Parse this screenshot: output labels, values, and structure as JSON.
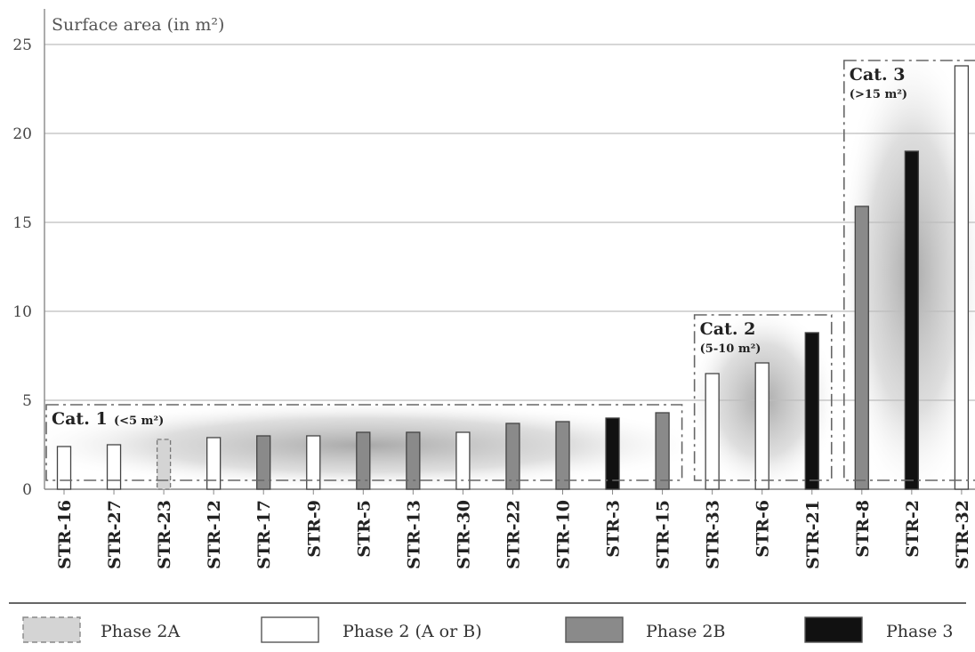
{
  "chart_data": {
    "type": "bar",
    "ylabel": "Surface area (in m²)",
    "ylim": [
      0,
      25
    ],
    "yticks": [
      0,
      5,
      10,
      15,
      20,
      25
    ],
    "grid": true,
    "categories": [
      "STR-16",
      "STR-27",
      "STR-23",
      "STR-12",
      "STR-17",
      "STR-9",
      "STR-5",
      "STR-13",
      "STR-30",
      "STR-22",
      "STR-10",
      "STR-3",
      "STR-15",
      "STR-33",
      "STR-6",
      "STR-21",
      "STR-8",
      "STR-2",
      "STR-32"
    ],
    "values": [
      2.4,
      2.5,
      2.8,
      2.9,
      3.0,
      3.0,
      3.2,
      3.2,
      3.2,
      3.7,
      3.8,
      4.0,
      4.3,
      6.5,
      7.1,
      8.8,
      15.9,
      19.0,
      23.8
    ],
    "phases": [
      "Phase 2 (A or B)",
      "Phase 2 (A or B)",
      "Phase 2A",
      "Phase 2 (A or B)",
      "Phase 2B",
      "Phase 2 (A or B)",
      "Phase 2B",
      "Phase 2B",
      "Phase 2 (A or B)",
      "Phase 2B",
      "Phase 2B",
      "Phase 3",
      "Phase 2B",
      "Phase 2 (A or B)",
      "Phase 2 (A or B)",
      "Phase 3",
      "Phase 2B",
      "Phase 3",
      "Phase 2 (A or B)"
    ],
    "legend_position": "bottom",
    "legend": [
      {
        "label": "Phase 2A",
        "fill": "#d4d4d4",
        "dashed": true
      },
      {
        "label": "Phase 2 (A or B)",
        "fill": "#ffffff",
        "dashed": false
      },
      {
        "label": "Phase 2B",
        "fill": "#8a8a8a",
        "dashed": false
      },
      {
        "label": "Phase 3",
        "fill": "#111111",
        "dashed": false
      }
    ],
    "categories_groups": [
      {
        "title": "Cat. 1",
        "range": "(<5 m²)",
        "from": 0,
        "to": 12
      },
      {
        "title": "Cat. 2",
        "range": "(5-10 m²)",
        "from": 13,
        "to": 15
      },
      {
        "title": "Cat. 3",
        "range": "(>15 m²)",
        "from": 16,
        "to": 18
      }
    ]
  }
}
